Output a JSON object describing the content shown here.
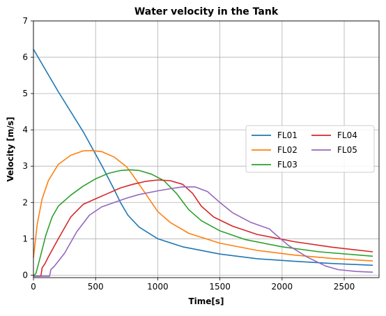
{
  "chart_data": {
    "type": "line",
    "title": "Water velocity in the Tank",
    "xlabel": "Time[s]",
    "ylabel": "Velocity [m/s]",
    "xlim": [
      0,
      2780
    ],
    "ylim": [
      -0.07,
      7
    ],
    "xticks": [
      0,
      500,
      1000,
      1500,
      2000,
      2500
    ],
    "yticks": [
      0,
      1,
      2,
      3,
      4,
      5,
      6,
      7
    ],
    "grid": true,
    "legend": {
      "placement": "center-right",
      "columns": 2
    },
    "series": [
      {
        "name": "FL01",
        "color": "#1f77b4",
        "points": [
          [
            0,
            6.22
          ],
          [
            200,
            5.05
          ],
          [
            400,
            3.95
          ],
          [
            550,
            3.02
          ],
          [
            650,
            2.35
          ],
          [
            700,
            2.0
          ],
          [
            760,
            1.65
          ],
          [
            850,
            1.32
          ],
          [
            1000,
            1.0
          ],
          [
            1200,
            0.78
          ],
          [
            1500,
            0.58
          ],
          [
            1800,
            0.45
          ],
          [
            2100,
            0.38
          ],
          [
            2400,
            0.32
          ],
          [
            2730,
            0.27
          ]
        ]
      },
      {
        "name": "FL02",
        "color": "#ff7f0e",
        "points": [
          [
            0,
            0.48
          ],
          [
            30,
            1.4
          ],
          [
            70,
            2.1
          ],
          [
            120,
            2.6
          ],
          [
            200,
            3.05
          ],
          [
            300,
            3.3
          ],
          [
            400,
            3.42
          ],
          [
            470,
            3.43
          ],
          [
            550,
            3.4
          ],
          [
            650,
            3.25
          ],
          [
            750,
            2.98
          ],
          [
            800,
            2.75
          ],
          [
            900,
            2.25
          ],
          [
            1000,
            1.75
          ],
          [
            1100,
            1.45
          ],
          [
            1250,
            1.15
          ],
          [
            1500,
            0.88
          ],
          [
            1800,
            0.68
          ],
          [
            2100,
            0.55
          ],
          [
            2400,
            0.46
          ],
          [
            2730,
            0.39
          ]
        ]
      },
      {
        "name": "FL03",
        "color": "#2ca02c",
        "points": [
          [
            0,
            -0.03
          ],
          [
            20,
            0.05
          ],
          [
            40,
            0.3
          ],
          [
            70,
            0.7
          ],
          [
            100,
            1.1
          ],
          [
            150,
            1.6
          ],
          [
            200,
            1.9
          ],
          [
            300,
            2.2
          ],
          [
            400,
            2.45
          ],
          [
            500,
            2.65
          ],
          [
            600,
            2.8
          ],
          [
            700,
            2.88
          ],
          [
            780,
            2.9
          ],
          [
            850,
            2.88
          ],
          [
            950,
            2.78
          ],
          [
            1050,
            2.6
          ],
          [
            1150,
            2.25
          ],
          [
            1250,
            1.8
          ],
          [
            1350,
            1.5
          ],
          [
            1500,
            1.22
          ],
          [
            1700,
            0.98
          ],
          [
            2000,
            0.78
          ],
          [
            2300,
            0.64
          ],
          [
            2730,
            0.52
          ]
        ]
      },
      {
        "name": "FL04",
        "color": "#d62728",
        "points": [
          [
            0,
            -0.03
          ],
          [
            60,
            -0.03
          ],
          [
            70,
            0.2
          ],
          [
            90,
            0.3
          ],
          [
            120,
            0.5
          ],
          [
            200,
            1.0
          ],
          [
            300,
            1.6
          ],
          [
            400,
            1.95
          ],
          [
            500,
            2.1
          ],
          [
            600,
            2.25
          ],
          [
            700,
            2.4
          ],
          [
            800,
            2.5
          ],
          [
            900,
            2.58
          ],
          [
            1000,
            2.62
          ],
          [
            1100,
            2.6
          ],
          [
            1200,
            2.5
          ],
          [
            1280,
            2.25
          ],
          [
            1350,
            1.9
          ],
          [
            1450,
            1.6
          ],
          [
            1600,
            1.35
          ],
          [
            1800,
            1.12
          ],
          [
            2100,
            0.92
          ],
          [
            2400,
            0.77
          ],
          [
            2730,
            0.64
          ]
        ]
      },
      {
        "name": "FL05",
        "color": "#9467bd",
        "points": [
          [
            0,
            -0.03
          ],
          [
            130,
            -0.03
          ],
          [
            140,
            0.15
          ],
          [
            170,
            0.25
          ],
          [
            250,
            0.6
          ],
          [
            350,
            1.2
          ],
          [
            450,
            1.65
          ],
          [
            550,
            1.88
          ],
          [
            650,
            2.0
          ],
          [
            750,
            2.12
          ],
          [
            850,
            2.22
          ],
          [
            1000,
            2.32
          ],
          [
            1100,
            2.38
          ],
          [
            1200,
            2.43
          ],
          [
            1300,
            2.43
          ],
          [
            1400,
            2.3
          ],
          [
            1500,
            2.0
          ],
          [
            1600,
            1.72
          ],
          [
            1750,
            1.45
          ],
          [
            1900,
            1.27
          ],
          [
            1920,
            1.2
          ],
          [
            2050,
            0.82
          ],
          [
            2200,
            0.5
          ],
          [
            2350,
            0.25
          ],
          [
            2450,
            0.15
          ],
          [
            2600,
            0.1
          ],
          [
            2730,
            0.08
          ]
        ]
      }
    ]
  }
}
